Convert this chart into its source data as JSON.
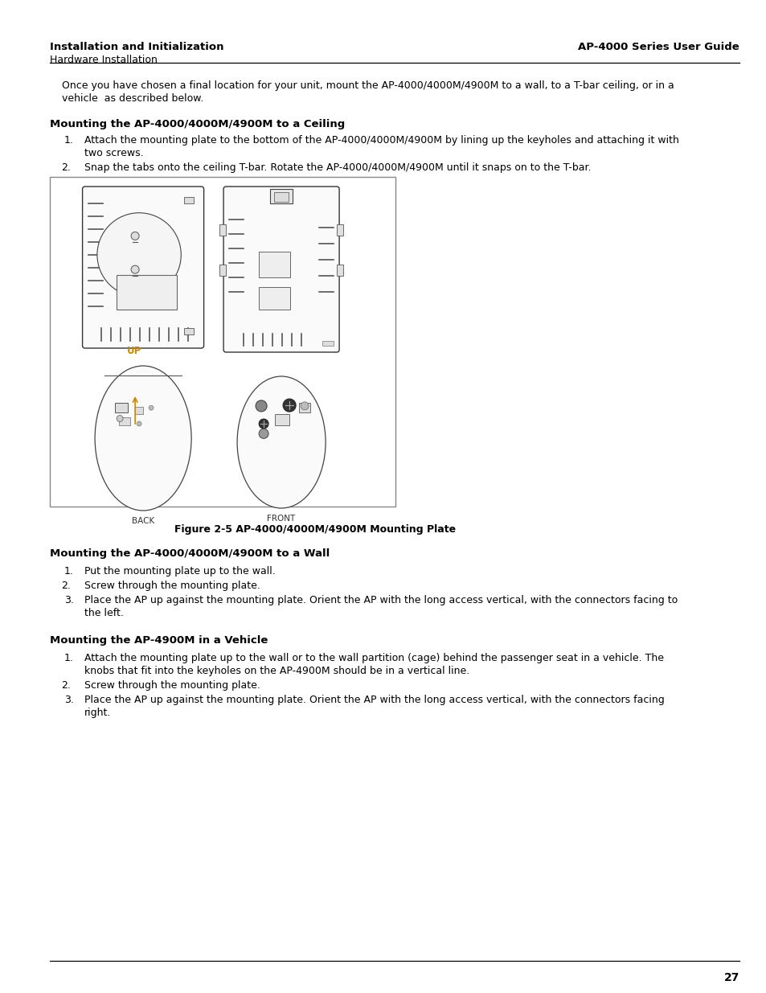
{
  "header_left_bold": "Installation and Initialization",
  "header_left_normal": "Hardware Installation",
  "header_right": "AP-4000 Series User Guide",
  "page_number": "27",
  "intro_text_line1": "Once you have chosen a final location for your unit, mount the AP-4000/4000M/4900M to a wall, to a T-bar ceiling, or in a",
  "intro_text_line2": "vehicle  as described below.",
  "section1_title": "Mounting the AP-4000/4000M/4900M to a Ceiling",
  "section1_item1_line1": "Attach the mounting plate to the bottom of the AP-4000/4000M/4900M by lining up the keyholes and attaching it with",
  "section1_item1_line2": "two screws.",
  "section1_item2": "Snap the tabs onto the ceiling T-bar. Rotate the AP-4000/4000M/4900M until it snaps on to the T-bar.",
  "figure_caption": "Figure 2-5 AP-4000/4000M/4900M Mounting Plate",
  "section2_title": "Mounting the AP-4000/4000M/4900M to a Wall",
  "section2_item1": "Put the mounting plate up to the wall.",
  "section2_item2": "Screw through the mounting plate.",
  "section2_item3_line1": "Place the AP up against the mounting plate. Orient the AP with the long access vertical, with the connectors facing to",
  "section2_item3_line2": "the left.",
  "section3_title": "Mounting the AP-4900M in a Vehicle",
  "section3_item1_line1": "Attach the mounting plate up to the wall or to the wall partition (cage) behind the passenger seat in a vehicle. The",
  "section3_item1_line2": "knobs that fit into the keyholes on the AP-4900M should be in a vertical line.",
  "section3_item2": "Screw through the mounting plate.",
  "section3_item3_line1": "Place the AP up against the mounting plate. Orient the AP with the long access vertical, with the connectors facing",
  "section3_item3_line2": "right.",
  "bg_color": "#ffffff",
  "text_color": "#000000"
}
